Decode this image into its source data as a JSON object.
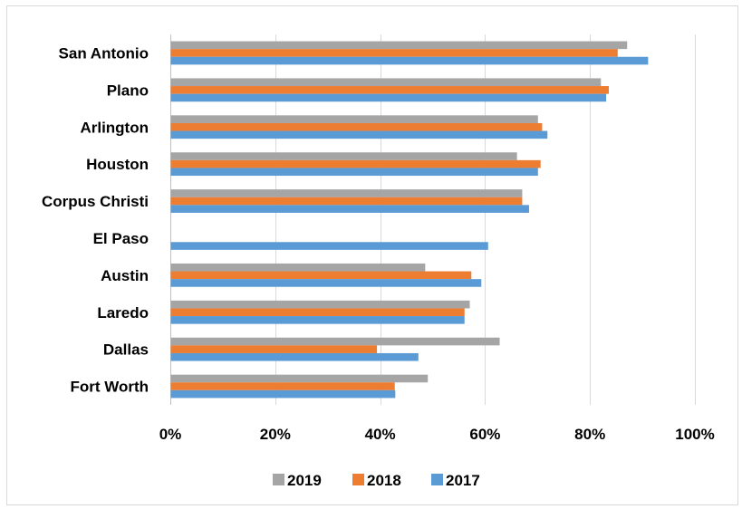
{
  "chart_data": {
    "type": "bar",
    "orientation": "horizontal",
    "categories": [
      "San Antonio",
      "Plano",
      "Arlington",
      "Houston",
      "Corpus Christi",
      "El Paso",
      "Austin",
      "Laredo",
      "Dallas",
      "Fort Worth"
    ],
    "series": [
      {
        "name": "2019",
        "color": "#a5a5a5",
        "values": [
          0.87,
          0.82,
          0.7,
          0.66,
          0.67,
          null,
          0.485,
          0.57,
          0.627,
          0.49
        ]
      },
      {
        "name": "2018",
        "color": "#ed7d31",
        "values": [
          0.852,
          0.835,
          0.708,
          0.705,
          0.67,
          null,
          0.573,
          0.56,
          0.393,
          0.427
        ]
      },
      {
        "name": "2017",
        "color": "#5b9bd5",
        "values": [
          0.91,
          0.83,
          0.718,
          0.7,
          0.683,
          0.605,
          0.592,
          0.56,
          0.472,
          0.428
        ]
      }
    ],
    "xlim": [
      0,
      1
    ],
    "x_ticks": [
      0,
      0.2,
      0.4,
      0.6,
      0.8,
      1.0
    ],
    "x_tick_labels": [
      "0%",
      "20%",
      "40%",
      "60%",
      "80%",
      "100%"
    ],
    "grid": true,
    "legend_position": "bottom",
    "legend_order": [
      "2019",
      "2018",
      "2017"
    ],
    "title": "",
    "xlabel": "",
    "ylabel": ""
  }
}
